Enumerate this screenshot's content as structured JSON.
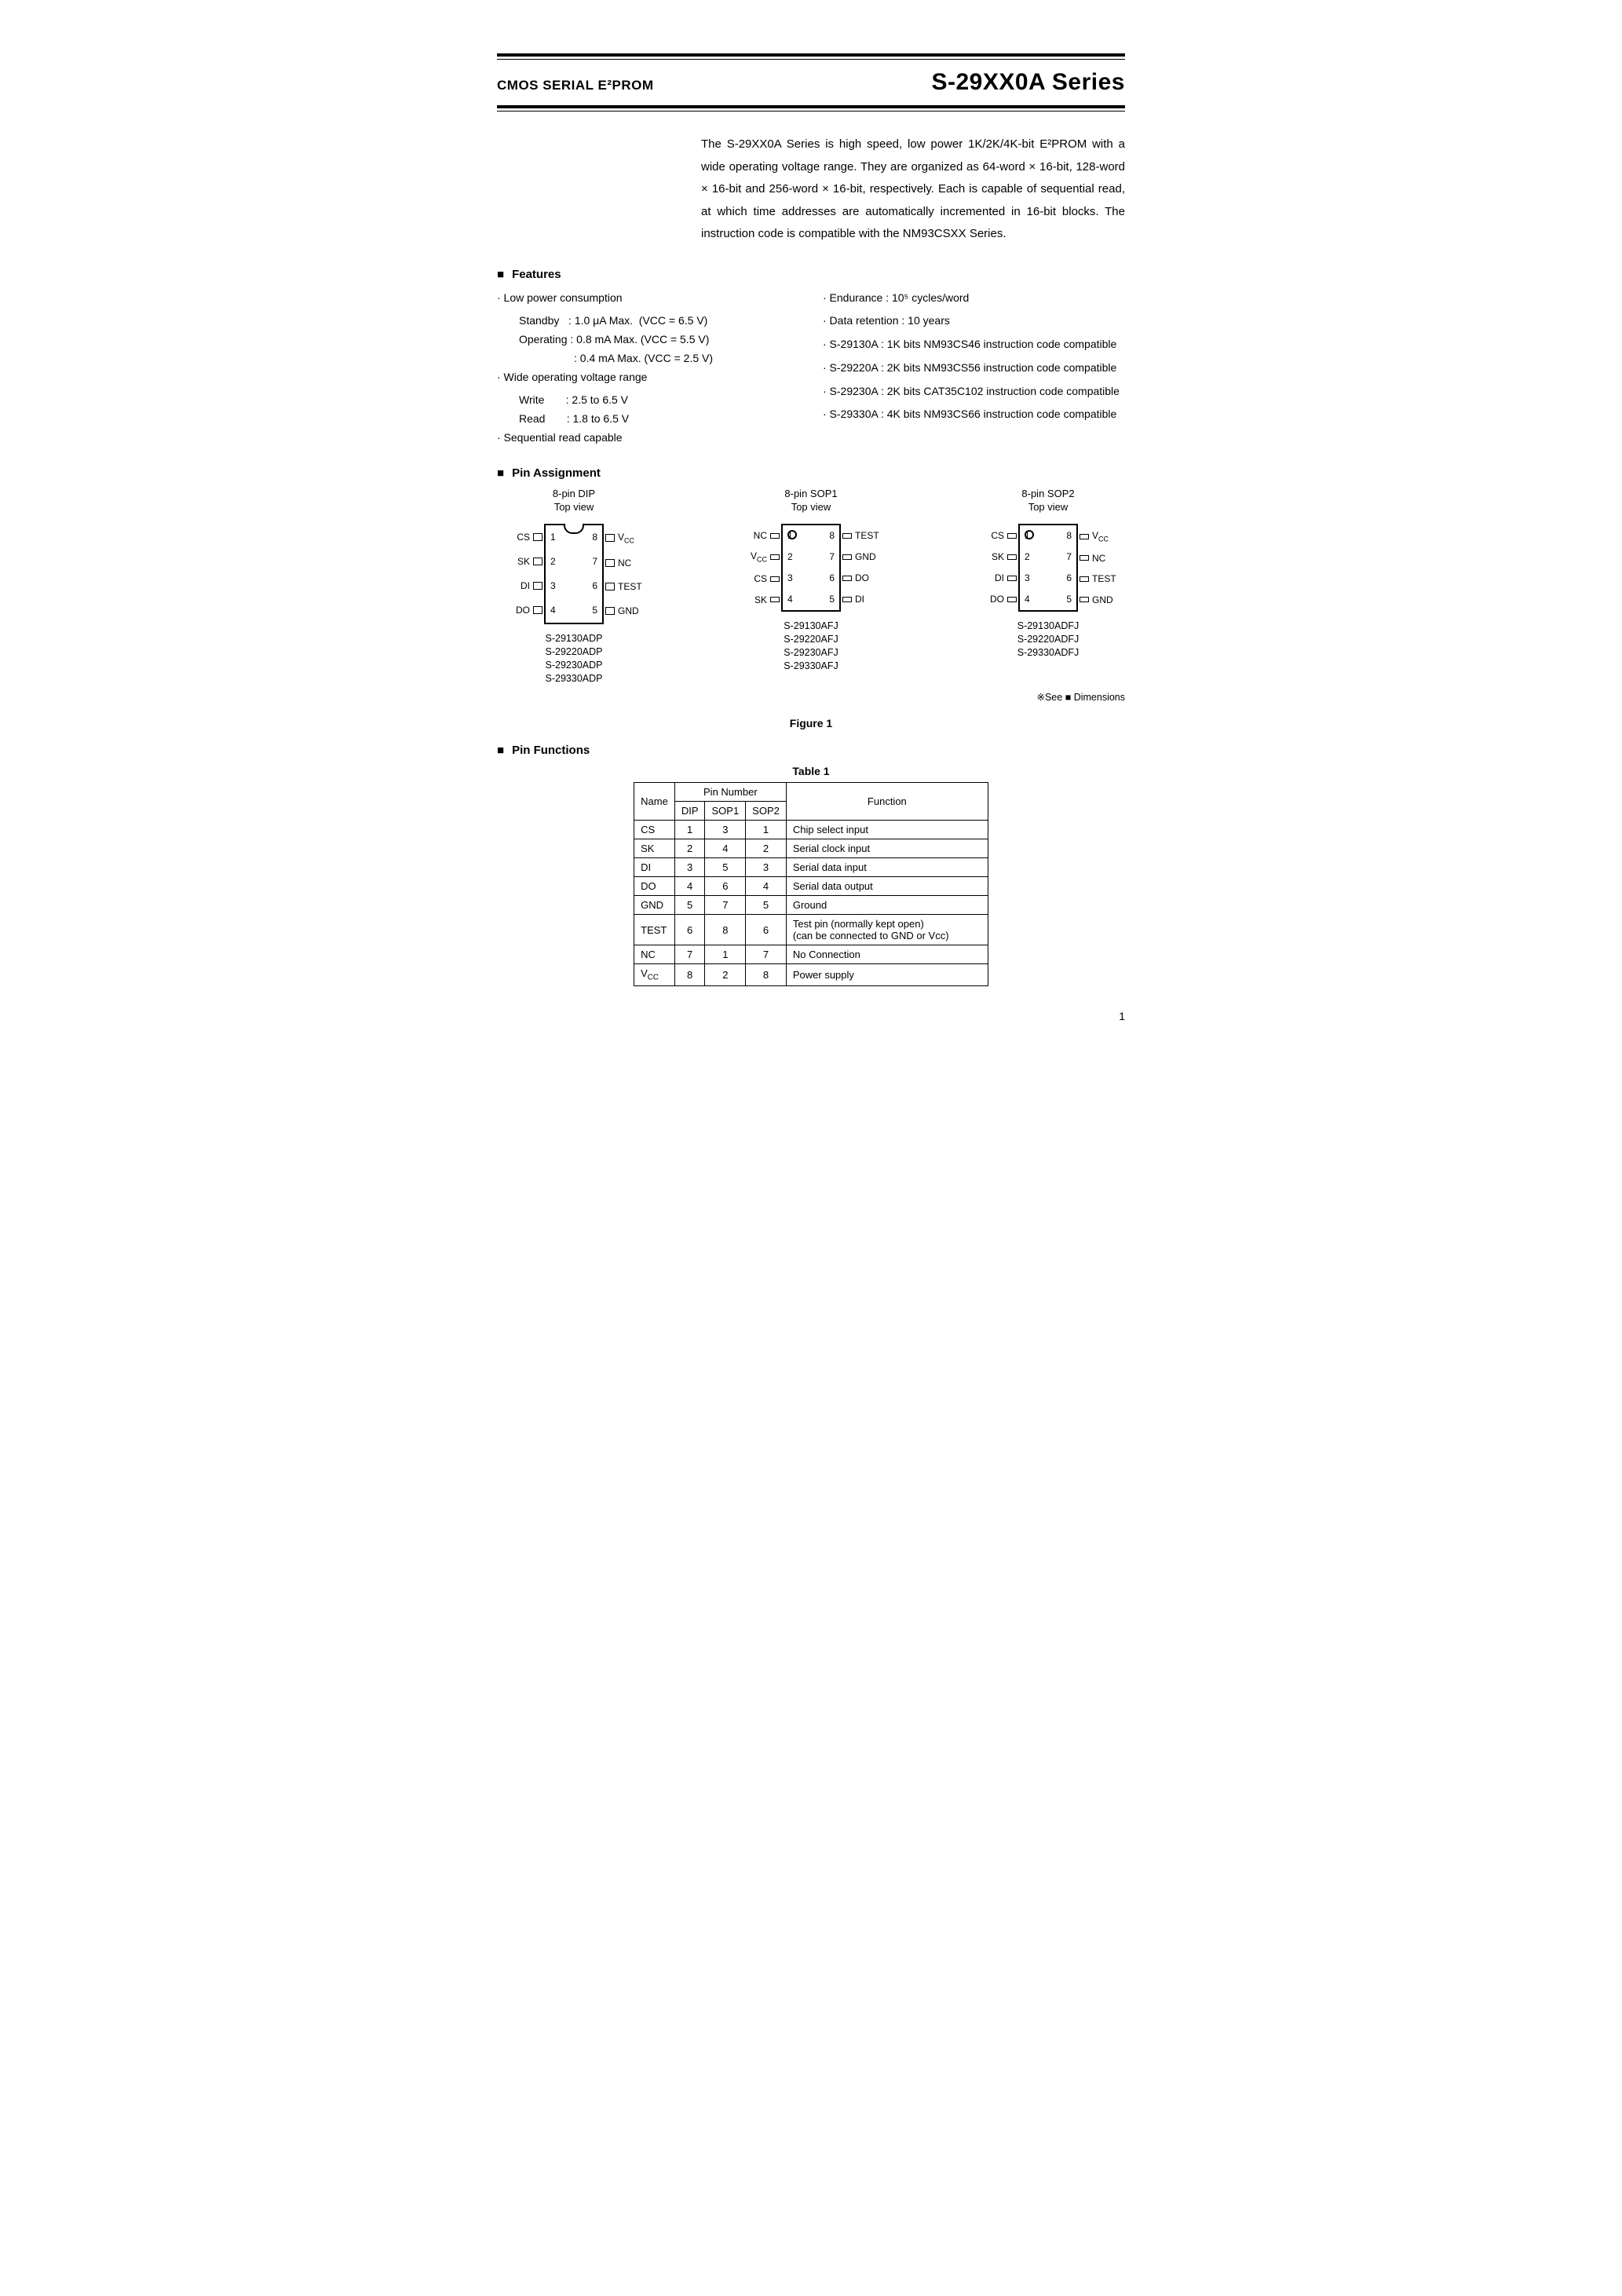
{
  "header": {
    "left": "CMOS SERIAL E²PROM",
    "right": "S-29XX0A Series"
  },
  "intro": "The S-29XX0A Series is high speed, low power 1K/2K/4K-bit E²PROM with a wide operating voltage range.  They are organized as 64-word × 16-bit, 128-word × 16-bit and 256-word × 16-bit, respectively.  Each is capable of sequential read, at which time addresses are automatically incremented in 16-bit blocks.  The instruction code is compatible with the NM93CSXX Series.",
  "features_heading": "Features",
  "features_left": [
    {
      "text": "· Low power consumption",
      "subs": [
        "Standby   : 1.0 μA Max.  (VCC = 6.5 V)",
        "Operating : 0.8 mA Max. (VCC = 5.5 V)",
        "                  : 0.4 mA Max. (VCC = 2.5 V)"
      ]
    },
    {
      "text": "· Wide operating voltage range",
      "subs": [
        "Write       : 2.5 to 6.5 V",
        "Read       : 1.8 to 6.5 V"
      ]
    },
    {
      "text": "· Sequential read capable",
      "subs": []
    }
  ],
  "features_right": [
    "· Endurance : 10⁵ cycles/word",
    "· Data retention : 10 years",
    "· S-29130A : 1K bits NM93CS46 instruction code compatible",
    "· S-29220A : 2K bits NM93CS56 instruction code compatible",
    "· S-29230A : 2K bits CAT35C102 instruction code compatible",
    "· S-29330A : 4K bits NM93CS66 instruction code compatible"
  ],
  "pin_assignment_heading": "Pin Assignment",
  "packages": {
    "dip": {
      "title": "8-pin DIP",
      "subtitle": "Top view",
      "left_pins": [
        "CS",
        "SK",
        "DI",
        "DO"
      ],
      "right_pins": [
        "Vcc",
        "NC",
        "TEST",
        "GND"
      ],
      "left_nums": [
        "1",
        "2",
        "3",
        "4"
      ],
      "right_nums": [
        "8",
        "7",
        "6",
        "5"
      ],
      "parts": [
        "S-29130ADP",
        "S-29220ADP",
        "S-29230ADP",
        "S-29330ADP"
      ]
    },
    "sop1": {
      "title": "8-pin SOP1",
      "subtitle": "Top view",
      "left_pins": [
        "NC",
        "Vcc",
        "CS",
        "SK"
      ],
      "right_pins": [
        "TEST",
        "GND",
        "DO",
        "DI"
      ],
      "left_nums": [
        "1",
        "2",
        "3",
        "4"
      ],
      "right_nums": [
        "8",
        "7",
        "6",
        "5"
      ],
      "parts": [
        "S-29130AFJ",
        "S-29220AFJ",
        "S-29230AFJ",
        "S-29330AFJ"
      ]
    },
    "sop2": {
      "title": "8-pin SOP2",
      "subtitle": "Top view",
      "left_pins": [
        "CS",
        "SK",
        "DI",
        "DO"
      ],
      "right_pins": [
        "Vcc",
        "NC",
        "TEST",
        "GND"
      ],
      "left_nums": [
        "1",
        "2",
        "3",
        "4"
      ],
      "right_nums": [
        "8",
        "7",
        "6",
        "5"
      ],
      "parts": [
        "S-29130ADFJ",
        "S-29220ADFJ",
        "S-29330ADFJ"
      ]
    }
  },
  "see_dimensions": "※See ■ Dimensions",
  "figure_caption": "Figure 1",
  "pin_functions_heading": "Pin Functions",
  "table_caption": "Table 1",
  "pin_table": {
    "head1": [
      "Name",
      "Pin Number",
      "Function"
    ],
    "head2": [
      "DIP",
      "SOP1",
      "SOP2"
    ],
    "rows": [
      [
        "CS",
        "1",
        "3",
        "1",
        "Chip select input"
      ],
      [
        "SK",
        "2",
        "4",
        "2",
        "Serial clock input"
      ],
      [
        "DI",
        "3",
        "5",
        "3",
        "Serial data input"
      ],
      [
        "DO",
        "4",
        "6",
        "4",
        "Serial data output"
      ],
      [
        "GND",
        "5",
        "7",
        "5",
        "Ground"
      ],
      [
        "TEST",
        "6",
        "8",
        "6",
        "Test pin (normally kept open)\n(can be connected to GND or Vcc)"
      ],
      [
        "NC",
        "7",
        "1",
        "7",
        "No Connection"
      ],
      [
        "Vcc",
        "8",
        "2",
        "8",
        "Power supply"
      ]
    ]
  },
  "page_number": "1"
}
